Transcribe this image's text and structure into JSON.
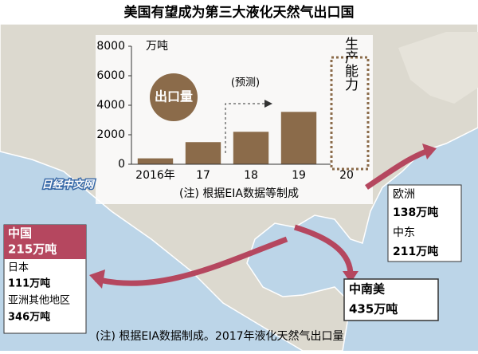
{
  "title": "美国有望成为第三大液化天然气出口国",
  "watermark": "日经中文网",
  "footnote": "(注) 根据EIA数据制成。2017年液化天然气出口量",
  "chart_data": {
    "type": "bar",
    "y_unit": "万吨",
    "legend_label": "出口量",
    "forecast_label": "(预测)",
    "capacity_label": "生产能力",
    "note": "(注) 根据EIA数据等制成",
    "categories": [
      "2016年",
      "17",
      "18",
      "19",
      "20"
    ],
    "values": [
      400,
      1500,
      2200,
      3550,
      null
    ],
    "color": "#8b6b4a",
    "ylim": [
      0,
      8000
    ],
    "yticks": [
      0,
      2000,
      4000,
      6000,
      8000
    ]
  },
  "destinations": {
    "asia": {
      "header": [
        "中国",
        "215万吨"
      ],
      "items": [
        "日本",
        "111万吨",
        "亚洲其他地区",
        "346万吨"
      ]
    },
    "europe": {
      "items": [
        "欧洲",
        "138万吨",
        "中东",
        "211万吨"
      ]
    },
    "latin_america": {
      "items": [
        "中南美",
        "435万吨"
      ]
    }
  }
}
